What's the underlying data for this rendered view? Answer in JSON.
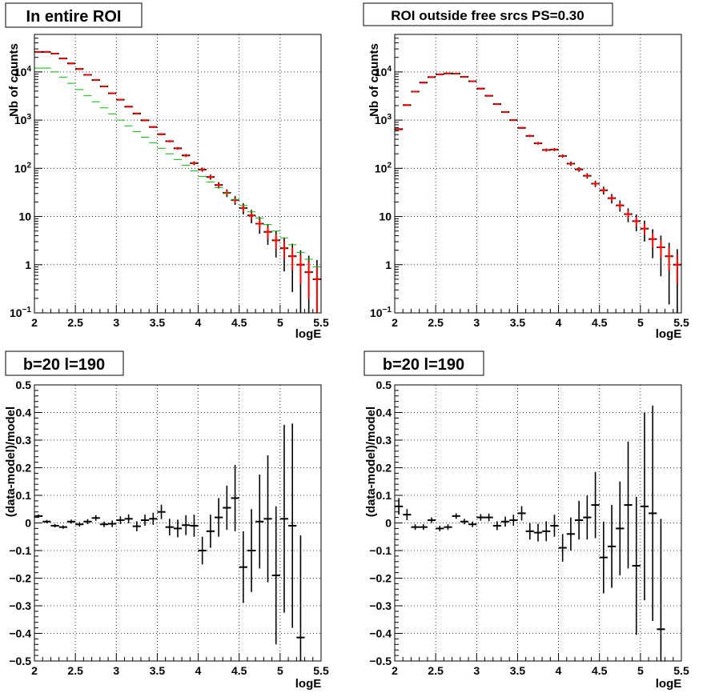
{
  "colors": {
    "data": "#000000",
    "model": "#ff0000",
    "model_alt": "#0000ff",
    "component": "#00bb00",
    "grid": "#000000",
    "background": "#ffffff"
  },
  "chart_data": [
    {
      "type": "scatter",
      "title": "In entire ROI",
      "xlabel": "logE",
      "ylabel": "Nb of counts",
      "xlim": [
        2,
        5.5
      ],
      "ylim": [
        0.1,
        60000
      ],
      "yscale": "log",
      "grid": true,
      "x_ticks": [
        "2",
        "2.5",
        "3",
        "3.5",
        "4",
        "4.5",
        "5",
        "5.5"
      ],
      "y_ticks": [
        "10^-1",
        "1",
        "10",
        "10^2",
        "10^3",
        "10^4"
      ],
      "bin_width": 0.1,
      "x": [
        2.05,
        2.15,
        2.25,
        2.35,
        2.45,
        2.55,
        2.65,
        2.75,
        2.85,
        2.95,
        3.05,
        3.15,
        3.25,
        3.35,
        3.45,
        3.55,
        3.65,
        3.75,
        3.85,
        3.95,
        4.05,
        4.15,
        4.25,
        4.35,
        4.45,
        4.55,
        4.65,
        4.75,
        4.85,
        4.95,
        5.05,
        5.15,
        5.25,
        5.35,
        5.45
      ],
      "series": [
        {
          "name": "",
          "role": "data",
          "color": "#000000",
          "values": [
            26000,
            26000,
            24000,
            19000,
            15000,
            11500,
            8700,
            6800,
            5000,
            3600,
            2650,
            1900,
            1370,
            990,
            720,
            510,
            365,
            260,
            185,
            128,
            94,
            66,
            45,
            31,
            22,
            15,
            10.5,
            7.1,
            4.8,
            3.2,
            2.2,
            1.5,
            1.0,
            0.7,
            0.5
          ],
          "err_pct": [
            1,
            1,
            1,
            1,
            1,
            1,
            1,
            1,
            1,
            2,
            2,
            2,
            3,
            3,
            4,
            4,
            5,
            6,
            7,
            9,
            10,
            12,
            15,
            18,
            21,
            26,
            31,
            38,
            46,
            56,
            67,
            82,
            100,
            120,
            150
          ]
        },
        {
          "name": "",
          "role": "model",
          "color": "#ff0000",
          "values": [
            26000,
            26000,
            24000,
            19000,
            15000,
            11500,
            8700,
            6800,
            5000,
            3600,
            2650,
            1900,
            1370,
            990,
            720,
            510,
            365,
            260,
            185,
            128,
            94,
            66,
            45,
            31,
            22,
            15,
            10.5,
            7.1,
            4.8,
            3.2,
            2.2,
            1.5,
            1.0,
            0.7,
            0.5
          ]
        },
        {
          "name": "",
          "role": "component",
          "color": "#00bb00",
          "values": [
            12000,
            12000,
            10000,
            7800,
            5800,
            4300,
            3200,
            2400,
            1800,
            1350,
            1000,
            760,
            580,
            440,
            340,
            260,
            200,
            152,
            116,
            88,
            68,
            52,
            40,
            30,
            22.5,
            17,
            12.5,
            9.3,
            6.8,
            5,
            3.6,
            2.6,
            1.8,
            1.3,
            0.9
          ]
        }
      ]
    },
    {
      "type": "scatter",
      "title": "ROI outside free srcs PS=0.30",
      "xlabel": "logE",
      "ylabel": "Nb of counts",
      "xlim": [
        2,
        5.5
      ],
      "ylim": [
        0.1,
        60000
      ],
      "yscale": "log",
      "grid": true,
      "x_ticks": [
        "2",
        "2.5",
        "3",
        "3.5",
        "4",
        "4.5",
        "5",
        "5.5"
      ],
      "y_ticks": [
        "10^-1",
        "1",
        "10",
        "10^2",
        "10^3",
        "10^4"
      ],
      "bin_width": 0.1,
      "x": [
        2.05,
        2.15,
        2.25,
        2.35,
        2.45,
        2.55,
        2.65,
        2.75,
        2.85,
        2.95,
        3.05,
        3.15,
        3.25,
        3.35,
        3.45,
        3.55,
        3.65,
        3.75,
        3.85,
        3.95,
        4.05,
        4.15,
        4.25,
        4.35,
        4.45,
        4.55,
        4.65,
        4.75,
        4.85,
        4.95,
        5.05,
        5.15,
        5.25,
        5.35,
        5.45
      ],
      "series": [
        {
          "name": "",
          "role": "data",
          "color": "#000000",
          "values": [
            650,
            2050,
            3900,
            6000,
            7800,
            8900,
            9300,
            9200,
            7900,
            6400,
            4500,
            3200,
            2150,
            1470,
            1000,
            690,
            470,
            330,
            240,
            245,
            180,
            125,
            95,
            70,
            48,
            35,
            24,
            17,
            11.2,
            8.0,
            5.6,
            3.4,
            2.3,
            1.5,
            1.0
          ],
          "err_pct": [
            4,
            2,
            2,
            1,
            1,
            1,
            1,
            1,
            1,
            1,
            2,
            2,
            2,
            3,
            3,
            4,
            5,
            6,
            7,
            7,
            8,
            10,
            11,
            13,
            15,
            18,
            22,
            26,
            32,
            38,
            46,
            60,
            75,
            90,
            110
          ]
        },
        {
          "name": "",
          "role": "model",
          "color": "#ff0000",
          "values": [
            640,
            2050,
            3900,
            6000,
            7800,
            8900,
            9300,
            9200,
            7900,
            6400,
            4500,
            3200,
            2150,
            1470,
            1000,
            690,
            470,
            330,
            240,
            245,
            180,
            125,
            95,
            70,
            48,
            35,
            24,
            17,
            11.2,
            8.0,
            5.6,
            3.4,
            2.3,
            1.5,
            1.0
          ]
        }
      ]
    },
    {
      "type": "scatter",
      "title": "b=20 l=190",
      "xlabel": "logE",
      "ylabel": "(data-model)/model",
      "xlim": [
        2,
        5.5
      ],
      "ylim": [
        -0.5,
        0.5
      ],
      "yscale": "linear",
      "grid": true,
      "x_ticks": [
        "2",
        "2.5",
        "3",
        "3.5",
        "4",
        "4.5",
        "5",
        "5.5"
      ],
      "y_ticks": [
        "−0.5",
        "−0.4",
        "−0.3",
        "−0.2",
        "−0.1",
        "0",
        "0.1",
        "0.2",
        "0.3",
        "0.4",
        "0.5"
      ],
      "bin_width": 0.1,
      "x": [
        2.05,
        2.15,
        2.25,
        2.35,
        2.45,
        2.55,
        2.65,
        2.75,
        2.85,
        2.95,
        3.05,
        3.15,
        3.25,
        3.35,
        3.45,
        3.55,
        3.65,
        3.75,
        3.85,
        3.95,
        4.05,
        4.15,
        4.25,
        4.35,
        4.45,
        4.55,
        4.65,
        4.75,
        4.85,
        4.95,
        5.05,
        5.15,
        5.25
      ],
      "series": [
        {
          "name": "",
          "role": "residual",
          "color": "#000000",
          "values": [
            0.025,
            0.005,
            -0.01,
            -0.015,
            0.005,
            -0.005,
            0.005,
            0.018,
            -0.005,
            -0.003,
            0.01,
            0.015,
            -0.012,
            0.01,
            0.015,
            0.04,
            -0.015,
            -0.02,
            -0.008,
            -0.01,
            -0.1,
            -0.03,
            0.02,
            0.055,
            0.09,
            -0.16,
            -0.1,
            0.005,
            0.015,
            -0.19,
            0.015,
            -0.01,
            -0.415
          ],
          "errors": [
            0.006,
            0.006,
            0.006,
            0.006,
            0.007,
            0.008,
            0.009,
            0.01,
            0.01,
            0.012,
            0.014,
            0.016,
            0.018,
            0.02,
            0.022,
            0.026,
            0.03,
            0.032,
            0.036,
            0.04,
            0.05,
            0.06,
            0.07,
            0.08,
            0.12,
            0.13,
            0.15,
            0.17,
            0.23,
            0.25,
            0.34,
            0.37,
            0.37
          ]
        }
      ]
    },
    {
      "type": "scatter",
      "title": "b=20 l=190",
      "xlabel": "logE",
      "ylabel": "(data-model)/model",
      "xlim": [
        2,
        5.5
      ],
      "ylim": [
        -0.5,
        0.5
      ],
      "yscale": "linear",
      "grid": true,
      "x_ticks": [
        "2",
        "2.5",
        "3",
        "3.5",
        "4",
        "4.5",
        "5",
        "5.5"
      ],
      "y_ticks": [
        "−0.5",
        "−0.4",
        "−0.3",
        "−0.2",
        "−0.1",
        "0",
        "0.1",
        "0.2",
        "0.3",
        "0.4",
        "0.5"
      ],
      "bin_width": 0.1,
      "x": [
        2.05,
        2.15,
        2.25,
        2.35,
        2.45,
        2.55,
        2.65,
        2.75,
        2.85,
        2.95,
        3.05,
        3.15,
        3.25,
        3.35,
        3.45,
        3.55,
        3.65,
        3.75,
        3.85,
        3.95,
        4.05,
        4.15,
        4.25,
        4.35,
        4.45,
        4.55,
        4.65,
        4.75,
        4.85,
        4.95,
        5.05,
        5.15,
        5.25
      ],
      "series": [
        {
          "name": "",
          "role": "residual",
          "color": "#000000",
          "values": [
            0.06,
            0.03,
            -0.015,
            -0.015,
            0.01,
            -0.02,
            -0.015,
            0.025,
            0.005,
            -0.005,
            0.02,
            0.02,
            -0.01,
            0.005,
            0.01,
            0.035,
            -0.03,
            -0.035,
            -0.03,
            -0.01,
            -0.09,
            -0.04,
            0.01,
            0.02,
            0.065,
            -0.125,
            -0.085,
            -0.02,
            0.065,
            -0.155,
            0.06,
            0.035,
            -0.385
          ],
          "errors": [
            0.03,
            0.02,
            0.01,
            0.01,
            0.01,
            0.01,
            0.01,
            0.01,
            0.01,
            0.01,
            0.012,
            0.014,
            0.016,
            0.018,
            0.02,
            0.026,
            0.03,
            0.032,
            0.036,
            0.04,
            0.05,
            0.06,
            0.07,
            0.08,
            0.12,
            0.13,
            0.15,
            0.17,
            0.23,
            0.25,
            0.34,
            0.39,
            0.4
          ]
        }
      ]
    }
  ]
}
